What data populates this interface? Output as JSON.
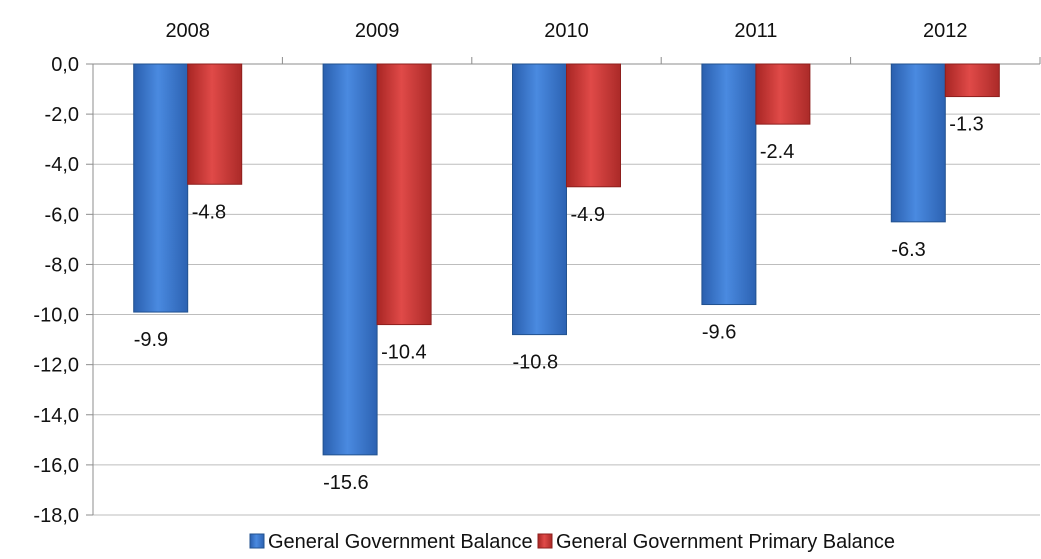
{
  "chart_data": {
    "type": "bar",
    "categories": [
      "2008",
      "2009",
      "2010",
      "2011",
      "2012"
    ],
    "series": [
      {
        "name": "General Government Balance",
        "values": [
          -9.9,
          -15.6,
          -10.8,
          -9.6,
          -6.3
        ],
        "labels": [
          "-9.9",
          "-15.6",
          "-10.8",
          "-9.6",
          "-6.3"
        ],
        "color": "#3a76c8"
      },
      {
        "name": "General Government Primary Balance",
        "values": [
          -4.8,
          -10.4,
          -4.9,
          -2.4,
          -1.3
        ],
        "labels": [
          "-4.8",
          "-10.4",
          "-4.9",
          "-2.4",
          "-1.3"
        ],
        "color": "#d03b3a"
      }
    ],
    "yticks": [
      "0,0",
      "-2,0",
      "-4,0",
      "-6,0",
      "-8,0",
      "-10,0",
      "-12,0",
      "-14,0",
      "-16,0",
      "-18,0"
    ],
    "ylim": [
      -18,
      0
    ],
    "x_axis_position": "top",
    "grid": true,
    "legend_position": "bottom"
  }
}
